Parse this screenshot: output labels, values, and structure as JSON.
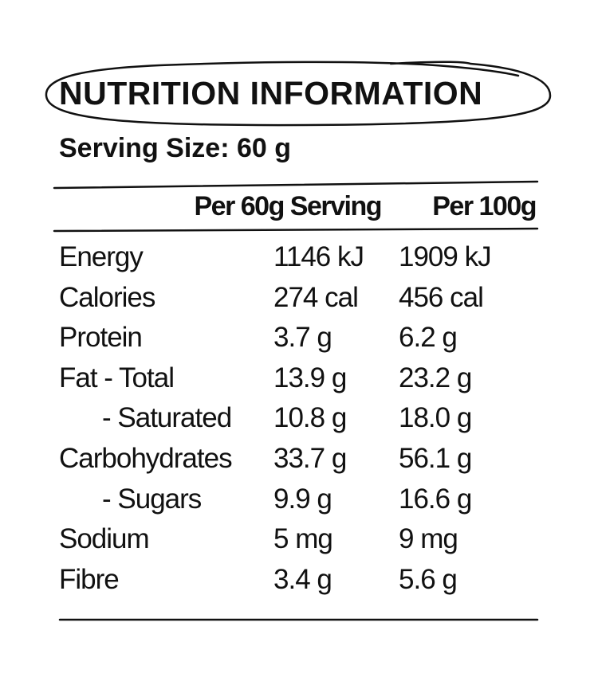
{
  "title": "NUTRITION INFORMATION",
  "serving_size": "Serving Size: 60 g",
  "columns": [
    "Per 60g Serving",
    "Per 100g"
  ],
  "rows": [
    {
      "label": "Energy",
      "per_serving": "1146 kJ",
      "per_100g": "1909 kJ",
      "indent": false
    },
    {
      "label": "Calories",
      "per_serving": "274 cal",
      "per_100g": "456 cal",
      "indent": false
    },
    {
      "label": "Protein",
      "per_serving": "3.7 g",
      "per_100g": "6.2 g",
      "indent": false
    },
    {
      "label": "Fat - Total",
      "per_serving": "13.9 g",
      "per_100g": "23.2 g",
      "indent": false
    },
    {
      "label": "- Saturated",
      "per_serving": "10.8 g",
      "per_100g": "18.0 g",
      "indent": true
    },
    {
      "label": "Carbohydrates",
      "per_serving": "33.7 g",
      "per_100g": "56.1 g",
      "indent": false
    },
    {
      "label": "- Sugars",
      "per_serving": "9.9 g",
      "per_100g": "16.6 g",
      "indent": true
    },
    {
      "label": "Sodium",
      "per_serving": "5 mg",
      "per_100g": "9 mg",
      "indent": false
    },
    {
      "label": "Fibre",
      "per_serving": "3.4 g",
      "per_100g": "5.6 g",
      "indent": false
    }
  ]
}
